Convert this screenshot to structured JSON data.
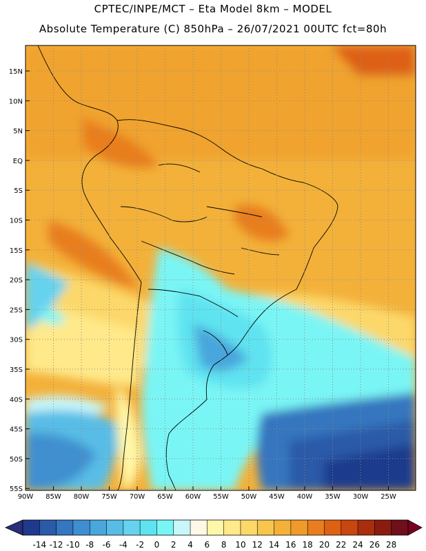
{
  "header": {
    "line1": "CPTEC/INPE/MCT –  Eta Model 8km – MODEL",
    "line2": "Absolute Temperature (C) 850hPa – 26/07/2021 00UTC fct=80h"
  },
  "map": {
    "lat_labels": [
      "15N",
      "10N",
      "5N",
      "EQ",
      "5S",
      "10S",
      "15S",
      "20S",
      "25S",
      "30S",
      "35S",
      "40S",
      "45S",
      "50S",
      "55S"
    ],
    "lon_labels": [
      "90W",
      "85W",
      "80W",
      "75W",
      "70W",
      "65W",
      "60W",
      "55W",
      "50W",
      "45W",
      "40W",
      "35W",
      "30W",
      "25W"
    ]
  },
  "colorbar": {
    "labels": [
      "-14",
      "-12",
      "-10",
      "-8",
      "-6",
      "-4",
      "-2",
      "0",
      "2",
      "4",
      "6",
      "8",
      "10",
      "12",
      "14",
      "16",
      "18",
      "20",
      "22",
      "24",
      "26",
      "28"
    ],
    "colors": [
      "#1f3a8c",
      "#2a5aa8",
      "#3476bf",
      "#3f8fd0",
      "#4aa6dc",
      "#58bde6",
      "#66d3ee",
      "#5fe3f0",
      "#7af5f5",
      "#c8f6fa",
      "#fff8e6",
      "#fff7a8",
      "#ffe98a",
      "#fcd86a",
      "#f7c64c",
      "#f3b13a",
      "#f09a2c",
      "#e87e1e",
      "#dd6014",
      "#c84610",
      "#a82e0e",
      "#8a1c0e",
      "#6e0f1a"
    ],
    "low_arrow_color": "#2a2f7a",
    "high_arrow_color": "#7a0020"
  }
}
